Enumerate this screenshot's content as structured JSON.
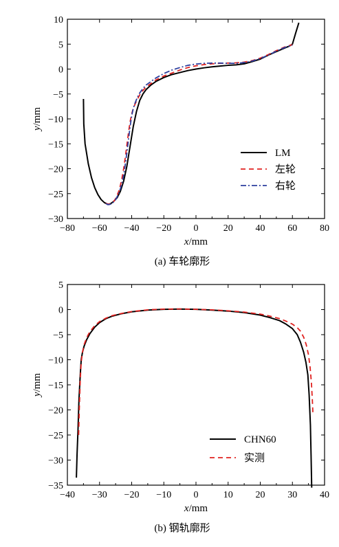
{
  "chart_data": [
    {
      "type": "line",
      "caption": "(a) 车轮廓形",
      "xlabel_var": "x",
      "xlabel_unit": "/mm",
      "ylabel_var": "y",
      "ylabel_unit": "/mm",
      "xlim": [
        -80,
        80
      ],
      "ylim": [
        -30,
        10
      ],
      "xticks": [
        -80,
        -60,
        -40,
        -20,
        0,
        20,
        40,
        60,
        80
      ],
      "yticks": [
        10,
        5,
        0,
        -5,
        -10,
        -15,
        -20,
        -25,
        -30
      ],
      "grid": false,
      "legend_position": "bottom-right",
      "series": [
        {
          "name": "LM",
          "color": "#000000",
          "dash": "solid",
          "x": [
            -70,
            -69.8,
            -69,
            -67,
            -65,
            -63,
            -61,
            -59,
            -57,
            -55,
            -54,
            -53,
            -51,
            -49,
            -47,
            -45,
            -43,
            -41,
            -39,
            -37,
            -35,
            -33,
            -31,
            -28,
            -25,
            -20,
            -15,
            -10,
            -5,
            0,
            5,
            10,
            15,
            20,
            25,
            30,
            35,
            40,
            45,
            50,
            55,
            58,
            60,
            62,
            64
          ],
          "y": [
            -6,
            -11,
            -15,
            -19,
            -21.8,
            -23.8,
            -25.2,
            -26.2,
            -26.8,
            -27.1,
            -27.1,
            -27,
            -26.5,
            -25.8,
            -24.5,
            -22.5,
            -19.5,
            -15.5,
            -11.5,
            -8.5,
            -6.3,
            -5,
            -4.1,
            -3.2,
            -2.5,
            -1.7,
            -1.1,
            -0.7,
            -0.3,
            0,
            0.25,
            0.45,
            0.6,
            0.75,
            0.85,
            1.05,
            1.5,
            2.0,
            2.8,
            3.5,
            4.2,
            4.6,
            5.0,
            7.2,
            9.3
          ]
        },
        {
          "name": "左轮",
          "color": "#e0211f",
          "dash": "dashed",
          "x": [
            -56,
            -55,
            -54,
            -53,
            -52,
            -51,
            -50,
            -49,
            -48,
            -47,
            -46,
            -45,
            -44,
            -43,
            -42,
            -41,
            -40,
            -39,
            -38,
            -37,
            -36,
            -35,
            -33,
            -31,
            -28,
            -25,
            -20,
            -15,
            -10,
            -5,
            0,
            5,
            10,
            15,
            20,
            25,
            30,
            35,
            40,
            45,
            50,
            55,
            58,
            60
          ],
          "y": [
            -26.9,
            -27.1,
            -27.1,
            -27,
            -26.8,
            -26.5,
            -26,
            -25.3,
            -24.5,
            -23.3,
            -21.8,
            -20,
            -17.8,
            -15.3,
            -12.8,
            -10.6,
            -9,
            -7.9,
            -7.1,
            -6.4,
            -5.8,
            -5.2,
            -4.3,
            -3.6,
            -2.9,
            -2.2,
            -1.4,
            -0.8,
            -0.2,
            0.3,
            0.65,
            0.9,
            1.05,
            1.15,
            1.2,
            1.25,
            1.4,
            1.7,
            2.2,
            2.9,
            3.7,
            4.4,
            4.7,
            4.9
          ]
        },
        {
          "name": "右轮",
          "color": "#2d3f9e",
          "dash": "dashdot",
          "x": [
            -56,
            -55,
            -54,
            -53,
            -52,
            -51,
            -50,
            -49,
            -48,
            -47,
            -46,
            -45,
            -44,
            -43,
            -42,
            -41,
            -40,
            -39,
            -38,
            -37,
            -36,
            -35,
            -33,
            -31,
            -28,
            -25,
            -20,
            -15,
            -10,
            -5,
            0,
            5,
            10,
            15,
            20,
            25,
            30,
            35,
            40,
            45,
            50,
            55,
            58,
            60
          ],
          "y": [
            -27,
            -27.2,
            -27.2,
            -27.1,
            -26.9,
            -26.6,
            -26.2,
            -25.6,
            -24.9,
            -24,
            -22.8,
            -21.3,
            -19.2,
            -16.8,
            -14.2,
            -11.6,
            -9.4,
            -7.9,
            -6.9,
            -6.1,
            -5.4,
            -4.8,
            -3.9,
            -3.2,
            -2.5,
            -1.8,
            -0.9,
            -0.2,
            0.3,
            0.75,
            1.0,
            1.15,
            1.2,
            1.2,
            1.15,
            1.15,
            1.3,
            1.6,
            2.1,
            2.8,
            3.6,
            4.3,
            4.6,
            4.8
          ]
        }
      ]
    },
    {
      "type": "line",
      "caption": "(b) 钢轨廓形",
      "xlabel_var": "x",
      "xlabel_unit": "/mm",
      "ylabel_var": "y",
      "ylabel_unit": "/mm",
      "xlim": [
        -40,
        40
      ],
      "ylim": [
        -35,
        5
      ],
      "xticks": [
        -40,
        -30,
        -20,
        -10,
        0,
        10,
        20,
        30,
        40
      ],
      "yticks": [
        5,
        0,
        -5,
        -10,
        -15,
        -20,
        -25,
        -30,
        -35
      ],
      "grid": false,
      "legend_position": "bottom-right",
      "series": [
        {
          "name": "CHN60",
          "color": "#000000",
          "dash": "solid",
          "x": [
            -37.2,
            -37,
            -36.7,
            -36.4,
            -36,
            -35.7,
            -35.3,
            -34.8,
            -34,
            -33,
            -31.5,
            -30,
            -28,
            -26,
            -23,
            -20,
            -15,
            -10,
            -5,
            0,
            5,
            10,
            15,
            20,
            23,
            26,
            28,
            30,
            31.5,
            32.5,
            33.5,
            34.2,
            34.8,
            35.2,
            35.6,
            35.8,
            36
          ],
          "y": [
            -33.5,
            -29,
            -24,
            -18,
            -13,
            -10,
            -8.5,
            -7.3,
            -6,
            -4.8,
            -3.5,
            -2.6,
            -1.8,
            -1.3,
            -0.8,
            -0.45,
            -0.1,
            0.05,
            0.1,
            0.05,
            -0.1,
            -0.3,
            -0.6,
            -1.1,
            -1.6,
            -2.2,
            -2.9,
            -3.8,
            -5,
            -6.5,
            -8.5,
            -10.5,
            -13,
            -17,
            -23,
            -29,
            -35.5
          ]
        },
        {
          "name": "实测",
          "color": "#e0211f",
          "dash": "dashed",
          "x": [
            -36.5,
            -36.3,
            -36,
            -35.7,
            -35.3,
            -34.8,
            -34,
            -33,
            -31.5,
            -30,
            -28,
            -26,
            -23,
            -20,
            -15,
            -10,
            -5,
            0,
            5,
            10,
            15,
            20,
            23,
            26,
            28,
            30,
            31.5,
            32.5,
            33.5,
            34.3,
            35,
            35.5,
            35.9,
            36.2,
            36.4
          ],
          "y": [
            -25,
            -20,
            -14,
            -10.5,
            -8.5,
            -7,
            -5.6,
            -4.4,
            -3.2,
            -2.4,
            -1.7,
            -1.2,
            -0.75,
            -0.4,
            -0.05,
            0.1,
            0.12,
            0.05,
            -0.05,
            -0.25,
            -0.5,
            -0.9,
            -1.3,
            -1.8,
            -2.3,
            -2.9,
            -3.6,
            -4.3,
            -5.5,
            -7,
            -9,
            -11.5,
            -14.5,
            -18,
            -21
          ]
        }
      ]
    }
  ]
}
